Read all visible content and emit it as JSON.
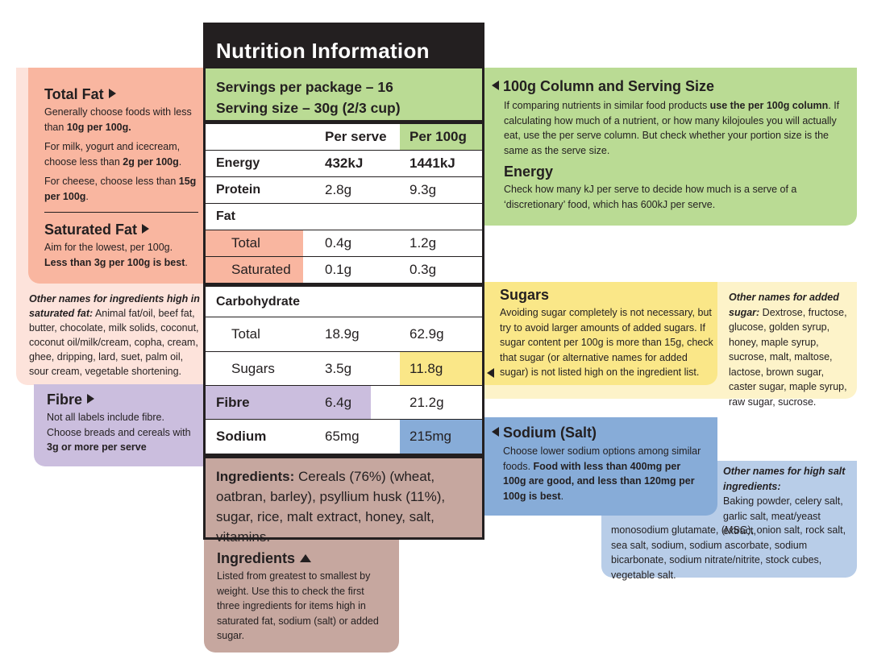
{
  "label": {
    "title": "Nutrition Information",
    "servings_per_package": "Servings per package – 16",
    "serving_size": "Serving size – 30g (2/3 cup)",
    "col_per_serve": "Per serve",
    "col_per_100g": "Per 100g",
    "rows": [
      {
        "name": "Energy",
        "serve": "432kJ",
        "per100": "1441kJ"
      },
      {
        "name": "Protein",
        "serve": "2.8g",
        "per100": "9.3g"
      },
      {
        "name": "Fat",
        "serve": "",
        "per100": ""
      },
      {
        "name": "Total",
        "serve": "0.4g",
        "per100": "1.2g"
      },
      {
        "name": "Saturated",
        "serve": "0.1g",
        "per100": "0.3g"
      },
      {
        "name": "Carbohydrate",
        "serve": "",
        "per100": ""
      },
      {
        "name": "Total",
        "serve": "18.9g",
        "per100": "62.9g"
      },
      {
        "name": "Sugars",
        "serve": "3.5g",
        "per100": "11.8g"
      },
      {
        "name": "Fibre",
        "serve": "6.4g",
        "per100": "21.2g"
      },
      {
        "name": "Sodium",
        "serve": "65mg",
        "per100": "215mg"
      }
    ],
    "ingredients_label": "Ingredients:",
    "ingredients_text": "Cereals (76%) (wheat, oatbran, barley), psyllium husk (11%), sugar, rice, malt extract, honey, salt, vitamins."
  },
  "total_fat": {
    "heading": "Total Fat",
    "p1a": "Generally choose foods with less than ",
    "p1b": "10g per 100g.",
    "p2a": "For milk, yogurt and icecream, choose less than ",
    "p2b": "2g per 100g",
    "p2c": ".",
    "p3a": "For cheese, choose less than ",
    "p3b": "15g per 100g",
    "p3c": "."
  },
  "saturated_fat": {
    "heading": "Saturated Fat",
    "p1": "Aim for the lowest, per 100g.",
    "p2": "Less than 3g per 100g is best",
    "p2c": "."
  },
  "sat_fat_names": {
    "lead": "Other names for ingredients high in saturated fat:",
    "list": " Animal fat/oil, beef fat, butter, chocolate, milk solids, coconut, coconut oil/milk/cream, copha, cream, ghee, dripping, lard, suet, palm oil, sour cream, vegetable shortening."
  },
  "fibre_info": {
    "heading": "Fibre",
    "text": "Not all labels include fibre. Choose breads and cereals with ",
    "bold": "3g or more per serve"
  },
  "ingredients_info": {
    "heading": "Ingredients",
    "text": "Listed from greatest to smallest by weight. Use this to check the first three ingredients for items high in saturated fat, sodium (salt) or added sugar."
  },
  "column_info": {
    "heading": "100g Column and Serving Size",
    "p1a": "If comparing nutrients in similar food products ",
    "p1b": "use the per 100g column",
    "p1c": ". If calculating how much of a nutrient, or how many kilojoules you will actually eat, use the per serve column. But check whether your portion size is the same as the serve size.",
    "energy_heading": "Energy",
    "energy_text": "Check how many kJ per serve to decide how much is a serve of a ‘discretionary’ food, which has 600kJ per serve."
  },
  "sugars_info": {
    "heading": "Sugars",
    "text": "Avoiding sugar completely is not necessary, but try to avoid larger amounts of added sugars. If sugar content per 100g is more than 15g, check that sugar (or alternative names for added sugar) is not listed high on the ingredient list."
  },
  "sugar_names": {
    "lead": "Other names for added sugar:",
    "list": " Dextrose, fructose, glucose, golden syrup, honey, maple syrup, sucrose, malt, maltose, lactose, brown sugar, caster sugar, maple syrup, raw sugar, sucrose."
  },
  "sodium_info": {
    "heading": "Sodium (Salt)",
    "text": "Choose lower sodium options among similar foods. ",
    "bold": "Food with less than 400mg per 100g are good, and less than 120mg per 100g is best",
    "end": "."
  },
  "salt_names": {
    "lead": "Other names for high salt ingredients:",
    "list1": "Baking powder, celery salt, garlic salt, meat/yeast extract,",
    "list2": "monosodium glutamate, (MSG), onion salt, rock salt, sea salt, sodium, sodium ascorbate, sodium bicarbonate, sodium nitrate/nitrite, stock cubes, vegetable salt."
  },
  "colors": {
    "fat": "#f9b6a0",
    "fat_light": "#fde3db",
    "fibre": "#cbbede",
    "column": "#badb94",
    "sugars": "#fae788",
    "sugars_light": "#fdf3c9",
    "sodium": "#87acd8",
    "sodium_light": "#b8cde8",
    "ingredients": "#c6a79f"
  }
}
